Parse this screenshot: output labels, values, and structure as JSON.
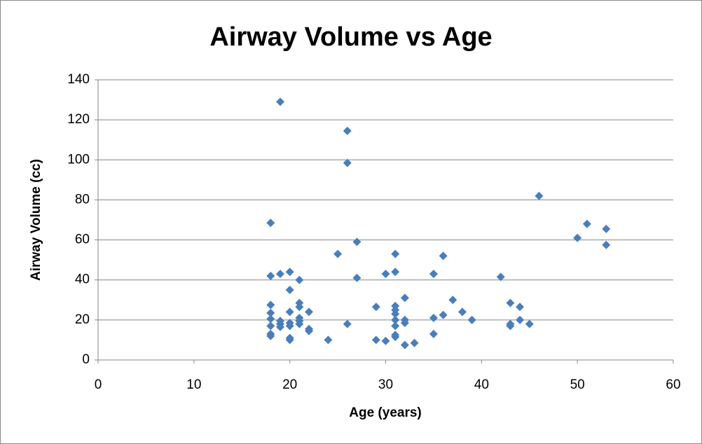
{
  "chart_data": {
    "type": "scatter",
    "title": "Airway Volume vs Age",
    "x_label": "Age (years)",
    "y_label": "Airway Volume (cc)",
    "color": "#4a7ebb",
    "x": [
      18,
      18,
      18,
      18,
      18,
      18,
      18,
      18,
      19,
      19,
      19,
      19,
      19,
      20,
      20,
      20,
      20,
      20,
      20,
      20,
      21,
      21,
      21,
      21,
      21,
      21,
      22,
      22,
      22,
      24,
      25,
      26,
      26,
      26,
      27,
      27,
      29,
      29,
      30,
      30,
      31,
      31,
      31,
      31,
      31,
      31,
      31,
      31,
      31,
      32,
      32,
      32,
      32,
      33,
      35,
      35,
      35,
      36,
      36,
      37,
      38,
      39,
      42,
      43,
      43,
      43,
      44,
      44,
      45,
      46,
      50,
      51,
      53,
      53
    ],
    "values": [
      68.5,
      42,
      27.5,
      23.5,
      20.5,
      17,
      13,
      12,
      129,
      43,
      19.5,
      18,
      16.5,
      44,
      35,
      24,
      18.5,
      17,
      11,
      10,
      40,
      28.5,
      26.5,
      21,
      19.5,
      18,
      24,
      15.5,
      14.5,
      10,
      53,
      114.5,
      98.5,
      18,
      59,
      41,
      26.5,
      10,
      43,
      9.5,
      53,
      44,
      27,
      25,
      23,
      20,
      17,
      12.5,
      11.5,
      31,
      20,
      18.5,
      7.5,
      8.5,
      43,
      21,
      13,
      52,
      22.5,
      30,
      24,
      20,
      41.5,
      28.5,
      18,
      17,
      26.5,
      20,
      18,
      82,
      61,
      68,
      65.5,
      57.5
    ],
    "xlim": [
      0,
      60
    ],
    "xticks": [
      0,
      10,
      20,
      30,
      40,
      50,
      60
    ],
    "ylim": [
      0,
      140
    ],
    "yticks": [
      0,
      20,
      40,
      60,
      80,
      100,
      120,
      140
    ],
    "grid": true
  }
}
